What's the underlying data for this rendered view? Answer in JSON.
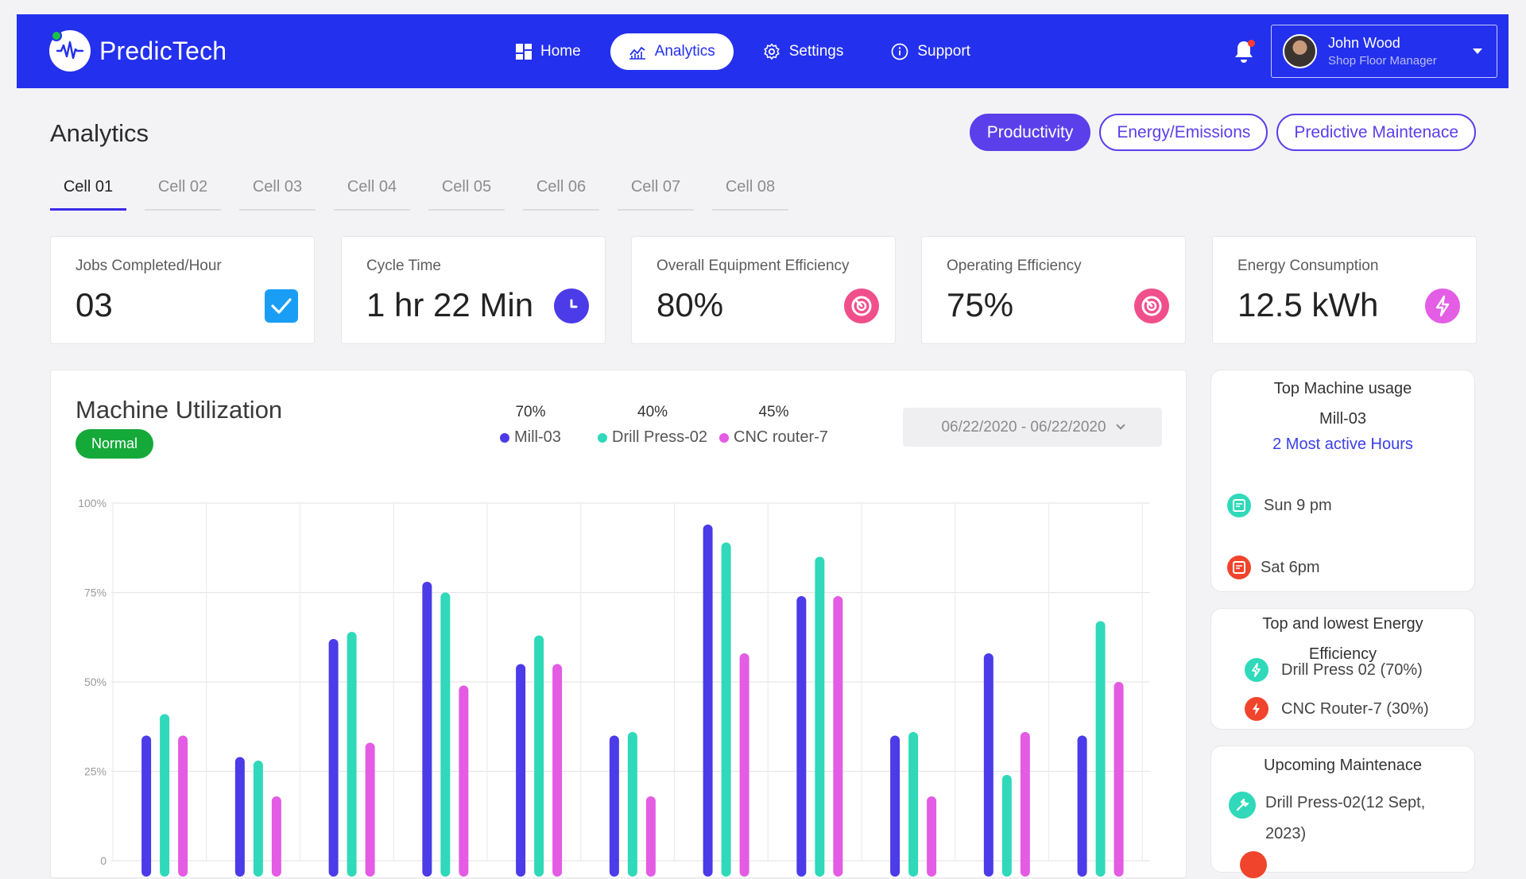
{
  "brand": {
    "name": "PredicTech"
  },
  "nav": {
    "items": [
      {
        "label": "Home",
        "icon": "grid-icon"
      },
      {
        "label": "Analytics",
        "icon": "chart-icon",
        "active": true
      },
      {
        "label": "Settings",
        "icon": "gear-icon"
      },
      {
        "label": "Support",
        "icon": "info-icon"
      }
    ]
  },
  "user": {
    "name": "John Wood",
    "role": "Shop Floor Manager"
  },
  "page": {
    "title": "Analytics",
    "view_tabs": [
      "Productivity",
      "Energy/Emissions",
      "Predictive Maintenace"
    ],
    "cell_tabs": [
      "Cell 01",
      "Cell 02",
      "Cell 03",
      "Cell 04",
      "Cell 05",
      "Cell 06",
      "Cell 07",
      "Cell 08"
    ]
  },
  "kpis": [
    {
      "label": "Jobs Completed/Hour",
      "value": "03",
      "icon": "checkbox-icon",
      "color": "#1a9ef5"
    },
    {
      "label": "Cycle Time",
      "value": "1 hr 22 Min",
      "icon": "clock-icon",
      "color": "#4b3be8"
    },
    {
      "label": "Overall Equipment Efficiency",
      "value": "80%",
      "icon": "gauge-icon",
      "color": "#f04f8c"
    },
    {
      "label": "Operating Efficiency",
      "value": "75%",
      "icon": "gauge-icon",
      "color": "#f04f8c"
    },
    {
      "label": "Energy Consumption",
      "value": "12.5 kWh",
      "icon": "bolt-icon",
      "color": "#e45de5"
    }
  ],
  "utilization": {
    "title": "Machine Utilization",
    "status": "Normal",
    "date_range": "06/22/2020 - 06/22/2020",
    "legend": [
      {
        "pct": "70%",
        "name": "Mill-03",
        "color": "#4b3be8"
      },
      {
        "pct": "40%",
        "name": "Drill Press-02",
        "color": "#2fd9b9"
      },
      {
        "pct": "45%",
        "name": "CNC router-7",
        "color": "#e35ce3"
      }
    ]
  },
  "chart_data": {
    "type": "bar",
    "ylim": [
      0,
      100
    ],
    "y_ticks": [
      0,
      25,
      50,
      75,
      100
    ],
    "y_tick_labels": [
      "0",
      "25%",
      "50%",
      "75%",
      "100%"
    ],
    "grid": true,
    "legend_position": "top",
    "series": [
      {
        "name": "Mill-03",
        "color": "#4b3be8",
        "values": [
          35,
          29,
          62,
          78,
          55,
          35,
          94,
          74,
          35,
          58,
          35
        ]
      },
      {
        "name": "Drill Press-02",
        "color": "#2fd9b9",
        "values": [
          41,
          28,
          64,
          75,
          63,
          36,
          89,
          85,
          36,
          24,
          67
        ]
      },
      {
        "name": "CNC router-7",
        "color": "#e35ce3",
        "values": [
          35,
          18,
          33,
          49,
          55,
          18,
          58,
          74,
          18,
          36,
          50
        ]
      }
    ]
  },
  "side": {
    "top_usage": {
      "title": "Top Machine  usage",
      "machine": "Mill-03",
      "link": "2 Most active Hours",
      "rows": [
        {
          "label": "Sun 9 pm",
          "icon": "calendar-icon",
          "color": "#2fd9b9"
        },
        {
          "label": "Sat 6pm",
          "icon": "calendar-icon",
          "color": "#f0442c"
        }
      ]
    },
    "energy": {
      "title_line1": "Top and lowest Energy",
      "title_line2": "Efficiency",
      "rows": [
        {
          "label": "Drill Press 02 (70%)",
          "icon": "bolt-icon",
          "color": "#2fd9b9"
        },
        {
          "label": "CNC Router-7 (30%)",
          "icon": "bolt-icon",
          "color": "#f0442c"
        }
      ]
    },
    "maintenance": {
      "title": "Upcoming Maintenace",
      "row_line1": "Drill Press-02(12 Sept,",
      "row_line2": "2023)",
      "icon": "wrench-icon",
      "color": "#2fd9b9"
    }
  }
}
